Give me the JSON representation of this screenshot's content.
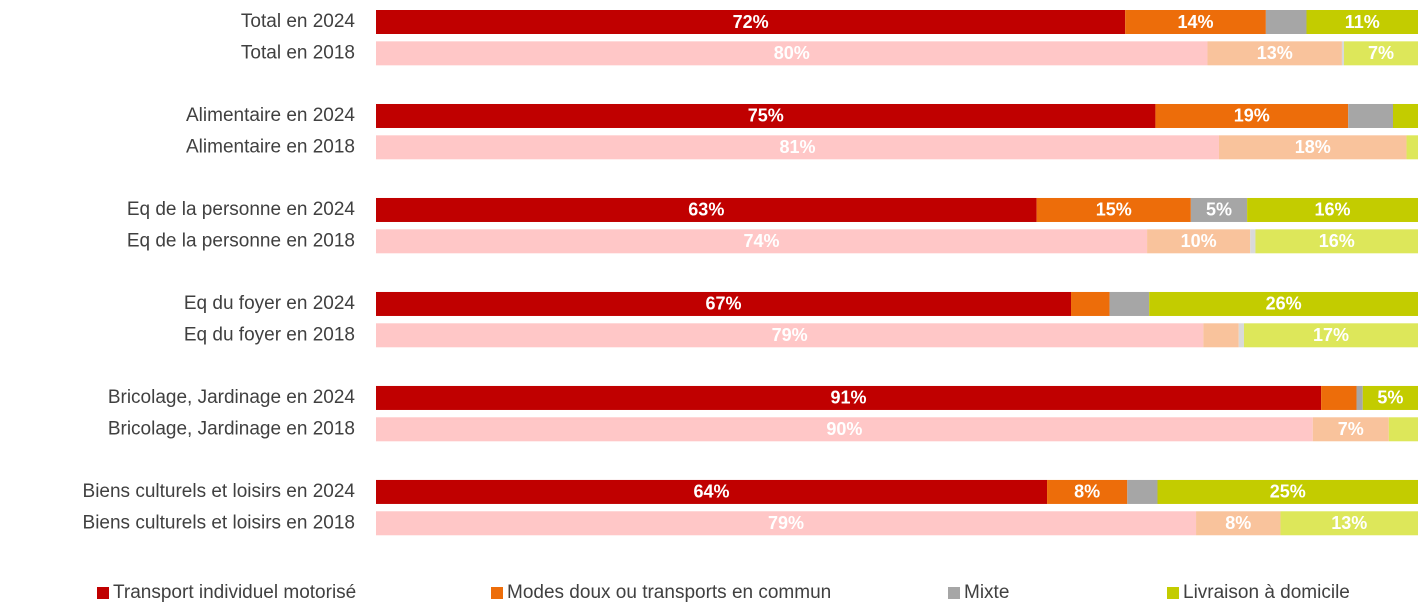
{
  "chart_data": {
    "type": "stacked_bar_horizontal",
    "categories": [
      "Total en 2024",
      "Total en 2018",
      null,
      "Alimentaire en 2024",
      "Alimentaire en 2018",
      null,
      "Eq de la personne en 2024",
      "Eq de la personne en 2018",
      null,
      "Eq du foyer en 2024",
      "Eq du foyer en 2018",
      null,
      "Bricolage, Jardinage en 2024",
      "Bricolage, Jardinage en 2018",
      null,
      "Biens culturels et loisirs en 2024",
      "Biens culturels et loisirs en 2018"
    ],
    "xlim": [
      0,
      100
    ],
    "series": [
      {
        "name": "Transport individuel motorisé",
        "color": "#c00000",
        "colors": [
          "#c00000",
          "#ffc7c7",
          null,
          "#c00000",
          "#ffc7c7",
          null,
          "#c00000",
          "#ffc7c7",
          null,
          "#c00000",
          "#ffc7c7",
          null,
          "#c00000",
          "#ffc7c7",
          null,
          "#c00000",
          "#ffc7c7"
        ],
        "values": [
          71.9,
          79.8,
          null,
          74.8,
          80.9,
          null,
          63.4,
          74.0,
          null,
          66.7,
          79.4,
          null,
          90.7,
          89.9,
          null,
          64.4,
          78.7
        ],
        "value_labels": [
          "72%",
          "80%",
          null,
          "75%",
          "81%",
          null,
          "63%",
          "74%",
          null,
          "67%",
          "79%",
          null,
          "91%",
          "90%",
          null,
          "64%",
          "79%"
        ]
      },
      {
        "name": "Modes doux ou transports en commun",
        "color": "#ed6d0a",
        "colors": [
          "#ed6d0a",
          "#f9c39c",
          null,
          "#ed6d0a",
          "#f9c39c",
          null,
          "#ed6d0a",
          "#f9c39c",
          null,
          "#ed6d0a",
          "#f9c39c",
          null,
          "#ed6d0a",
          "#f9c39c",
          null,
          "#ed6d0a",
          "#f9c39c"
        ],
        "values": [
          13.5,
          12.9,
          null,
          18.5,
          18.0,
          null,
          14.8,
          9.9,
          null,
          3.7,
          3.4,
          null,
          3.4,
          7.3,
          null,
          7.7,
          8.1
        ],
        "value_labels": [
          "14%",
          "13%",
          null,
          "19%",
          "18%",
          null,
          "15%",
          "10%",
          null,
          null,
          null,
          null,
          null,
          "7%",
          null,
          "8%",
          "8%"
        ]
      },
      {
        "name": "Mixte",
        "color": "#a6a6a6",
        "colors": [
          "#a6a6a6",
          "#d9d9d9",
          null,
          "#a6a6a6",
          "#d9d9d9",
          null,
          "#a6a6a6",
          "#d9d9d9",
          null,
          "#a6a6a6",
          "#d9d9d9",
          null,
          "#a6a6a6",
          "#d9d9d9",
          null,
          "#a6a6a6",
          "#d9d9d9"
        ],
        "values": [
          3.9,
          0.2,
          null,
          4.3,
          0,
          null,
          5.4,
          0.5,
          null,
          3.8,
          0.5,
          null,
          0.6,
          0,
          null,
          2.9,
          0
        ],
        "value_labels": [
          null,
          null,
          null,
          null,
          null,
          null,
          "5%",
          null,
          null,
          null,
          null,
          null,
          null,
          null,
          null,
          null,
          null
        ]
      },
      {
        "name": "Livraison à domicile",
        "color": "#c3cc00",
        "colors": [
          "#c3cc00",
          "#dde75a",
          null,
          "#c3cc00",
          "#dde75a",
          null,
          "#c3cc00",
          "#dde75a",
          null,
          "#c3cc00",
          "#dde75a",
          null,
          "#c3cc00",
          "#dde75a",
          null,
          "#c3cc00",
          "#dde75a"
        ],
        "values": [
          10.7,
          7.1,
          null,
          2.4,
          1.1,
          null,
          16.4,
          15.6,
          null,
          25.8,
          16.7,
          null,
          5.3,
          2.8,
          null,
          25.0,
          13.2
        ],
        "value_labels": [
          "11%",
          "7%",
          null,
          null,
          null,
          null,
          "16%",
          "16%",
          null,
          "26%",
          "17%",
          null,
          "5%",
          null,
          null,
          "25%",
          "13%"
        ]
      }
    ]
  }
}
